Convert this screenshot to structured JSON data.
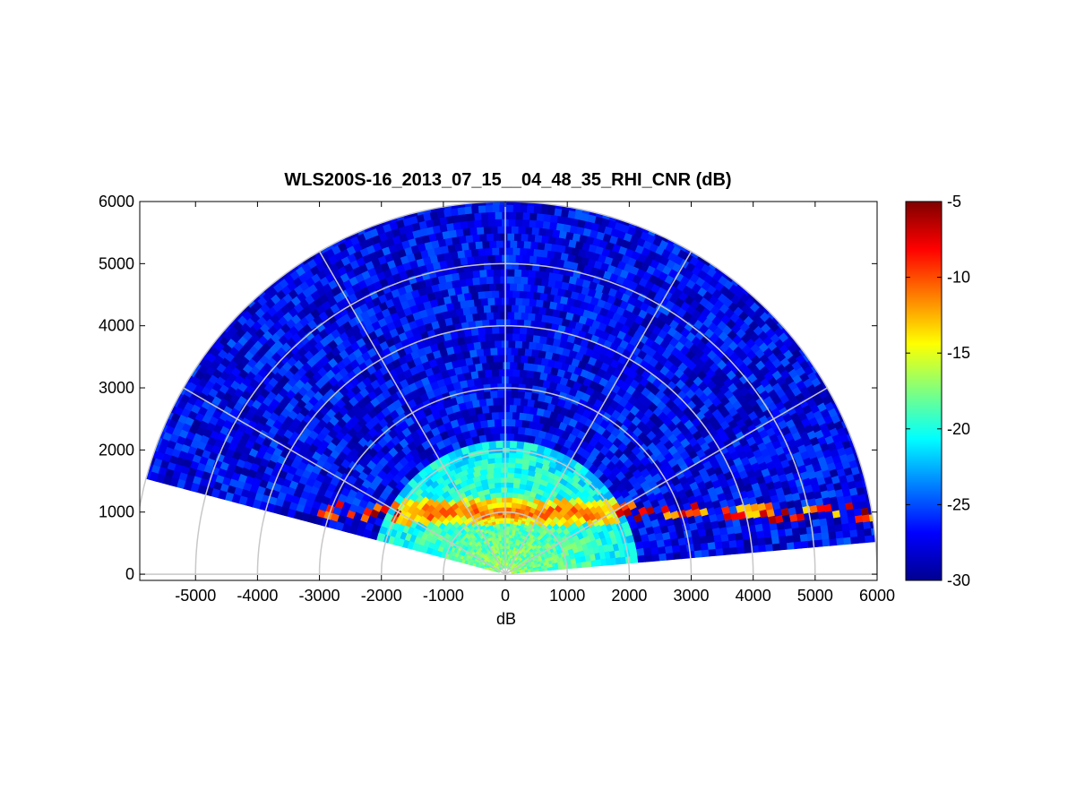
{
  "chart_data": {
    "type": "heatmap",
    "subtype": "polar RHI (range-height indicator) scan",
    "title": "WLS200S-16_2013_07_15__04_48_35_RHI_CNR (dB)",
    "xlabel": "dB",
    "ylabel": "",
    "xlim": [
      -5900,
      6000
    ],
    "ylim": [
      -100,
      6000
    ],
    "x_ticks": [
      -5000,
      -4000,
      -3000,
      -2000,
      -1000,
      0,
      1000,
      2000,
      3000,
      4000,
      5000,
      6000
    ],
    "y_ticks": [
      0,
      1000,
      2000,
      3000,
      4000,
      5000,
      6000
    ],
    "x_tick_labels": [
      "-5000",
      "-4000",
      "-3000",
      "-2000",
      "-1000",
      "0",
      "1000",
      "2000",
      "3000",
      "4000",
      "5000",
      "6000"
    ],
    "y_tick_labels": [
      "0",
      "1000",
      "2000",
      "3000",
      "4000",
      "5000",
      "6000"
    ],
    "grid": true,
    "polar_grid": {
      "range_rings": [
        1000,
        2000,
        3000,
        4000,
        5000,
        6000
      ],
      "spokes_deg": [
        0,
        30,
        60,
        90,
        120,
        150,
        180
      ]
    },
    "scan": {
      "max_range": 6000,
      "elevation_start_deg": 5,
      "elevation_end_deg": 165
    },
    "colorbar": {
      "colormap": "jet",
      "clim": [
        -30,
        -5
      ],
      "ticks": [
        -5,
        -10,
        -15,
        -20,
        -25,
        -30
      ],
      "tick_labels": [
        "-5",
        "-10",
        "-15",
        "-20",
        "-25",
        "-30"
      ]
    },
    "features": [
      {
        "name": "near-range high-CNR boundary layer",
        "range_max": 2000,
        "value_approx": -17
      },
      {
        "name": "aerosol layer top",
        "height_approx": 1000,
        "value_approx": -13
      },
      {
        "name": "cloud / strong return band (right)",
        "x_range": [
          1700,
          6000
        ],
        "height_approx": 1000,
        "value_approx": -6
      },
      {
        "name": "strong returns (left)",
        "x_range": [
          -3000,
          -1700
        ],
        "height_approx": 1000,
        "value_approx": -7
      },
      {
        "name": "background",
        "value_approx": -27
      }
    ]
  }
}
